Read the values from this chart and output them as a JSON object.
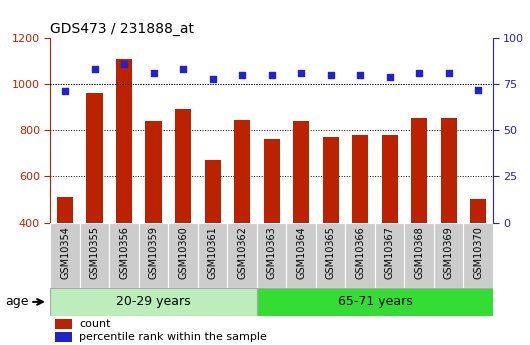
{
  "title": "GDS473 / 231888_at",
  "categories": [
    "GSM10354",
    "GSM10355",
    "GSM10356",
    "GSM10359",
    "GSM10360",
    "GSM10361",
    "GSM10362",
    "GSM10363",
    "GSM10364",
    "GSM10365",
    "GSM10366",
    "GSM10367",
    "GSM10368",
    "GSM10369",
    "GSM10370"
  ],
  "counts": [
    510,
    960,
    1110,
    840,
    890,
    670,
    845,
    760,
    840,
    770,
    778,
    778,
    855,
    855,
    500
  ],
  "percentile_ranks": [
    71,
    83,
    86,
    81,
    83,
    78,
    80,
    80,
    81,
    80,
    80,
    79,
    81,
    81,
    72
  ],
  "group1_label": "20-29 years",
  "group2_label": "65-71 years",
  "group1_count": 7,
  "group2_count": 8,
  "ylim_left": [
    400,
    1200
  ],
  "ylim_right": [
    0,
    100
  ],
  "yticks_left": [
    400,
    600,
    800,
    1000,
    1200
  ],
  "yticks_right": [
    0,
    25,
    50,
    75,
    100
  ],
  "bar_color": "#bb2200",
  "dot_color": "#2222cc",
  "group1_bg": "#bbeebb",
  "group2_bg": "#33dd33",
  "tick_bg": "#cccccc",
  "legend_bar_label": "count",
  "legend_dot_label": "percentile rank within the sample",
  "age_label": "age"
}
